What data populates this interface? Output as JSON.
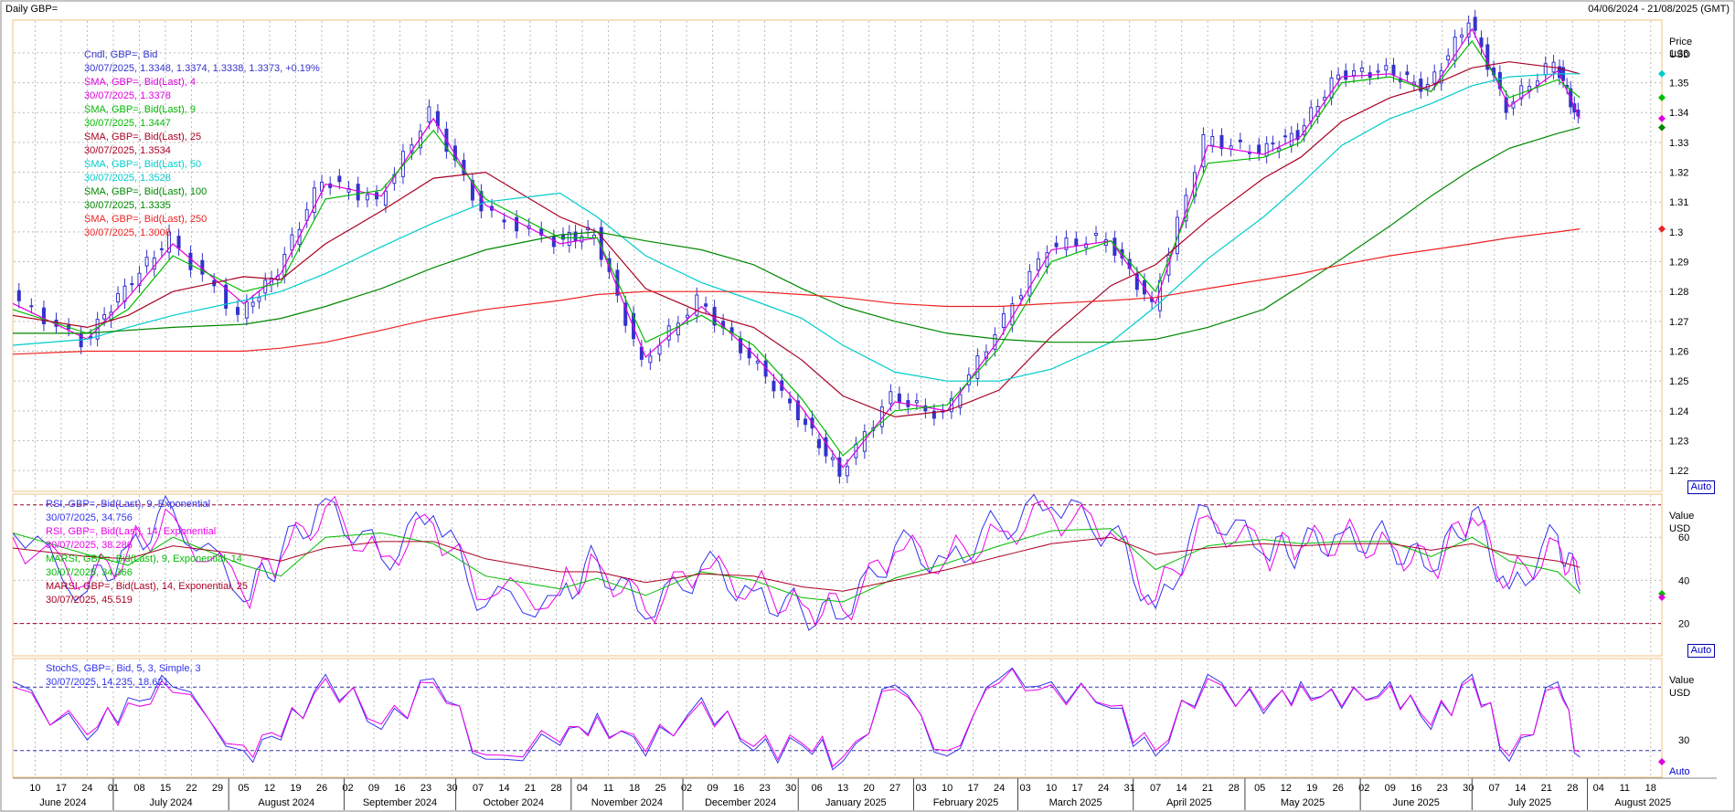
{
  "header": {
    "title": "Daily GBP=",
    "range": "04/06/2024 - 21/08/2025 (GMT)"
  },
  "colors": {
    "candle": "#3333cc",
    "sma4": "#dd00dd",
    "sma9": "#00bb00",
    "sma25": "#aa0022",
    "sma50": "#00cccc",
    "sma100": "#008800",
    "sma250": "#ee2222",
    "rsi9": "#3333ee",
    "rsi14": "#ee00ee",
    "marsi9": "#00bb00",
    "marsi14": "#aa0022",
    "stoch_k": "#3333ee",
    "stoch_d": "#ee00ee",
    "grid": "#bbbbbb",
    "frame": "#f0c080",
    "ref_line": "#990033"
  },
  "price_panel": {
    "axis_title": "Price",
    "axis_unit": "USD",
    "auto_label": "Auto",
    "legend": [
      {
        "name": "Cndl, GBP=, Bid",
        "value": "30/07/2025, 1.3348, 1.3374, 1.3338, 1.3373, +0.19%",
        "name_color": "#3333cc",
        "value_color": "#3333cc",
        "change": "+0.19%"
      },
      {
        "name": "SMA, GBP=, Bid(Last), 4",
        "value": "30/07/2025, 1.3378",
        "name_color": "#dd00dd",
        "value_color": "#dd00dd"
      },
      {
        "name": "SMA, GBP=, Bid(Last), 9",
        "value": "30/07/2025, 1.3447",
        "name_color": "#00bb00",
        "value_color": "#00bb00"
      },
      {
        "name": "SMA, GBP=, Bid(Last), 25",
        "value": "30/07/2025, 1.3534",
        "name_color": "#aa0022",
        "value_color": "#aa0022"
      },
      {
        "name": "SMA, GBP=, Bid(Last), 50",
        "value": "30/07/2025, 1.3528",
        "name_color": "#00cccc",
        "value_color": "#00cccc"
      },
      {
        "name": "SMA, GBP=, Bid(Last), 100",
        "value": "30/07/2025, 1.3335",
        "name_color": "#008800",
        "value_color": "#008800"
      },
      {
        "name": "SMA, GBP=, Bid(Last), 250",
        "value": "30/07/2025, 1.3008",
        "name_color": "#ee2222",
        "value_color": "#ee2222"
      }
    ],
    "y_ticks": [
      "1.22",
      "1.23",
      "1.24",
      "1.25",
      "1.26",
      "1.27",
      "1.28",
      "1.29",
      "1.3",
      "1.31",
      "1.32",
      "1.33",
      "1.34",
      "1.35",
      "1.36"
    ]
  },
  "rsi_panel": {
    "axis_title": "Value",
    "axis_unit": "USD",
    "auto_label": "Auto",
    "legend": [
      {
        "name": "RSI, GBP=, Bid(Last), 9, Exponential",
        "value": "30/07/2025, 34.756",
        "color": "#3333ee"
      },
      {
        "name": "RSI, GBP=, Bid(Last), 14, Exponential",
        "value": "30/07/2025, 38.286",
        "color": "#ee00ee"
      },
      {
        "name": "MARSI, GBP=, Bid(Last), 9, Exponential, 14",
        "value": "30/07/2025, 34.366",
        "color": "#00bb00"
      },
      {
        "name": "MARSI, GBP=, Bid(Last), 14, Exponential, 25",
        "value": "30/07/2025, 45.519",
        "color": "#aa0022"
      }
    ],
    "y_ticks": [
      "20",
      "40",
      "60"
    ]
  },
  "stoch_panel": {
    "axis_title": "Value",
    "axis_unit": "USD",
    "legend": [
      {
        "name": "StochS, GBP=, Bid,  5, 3, Simple, 3",
        "value": "30/07/2025, 14.235, 18.621",
        "color": "#3333ee"
      }
    ],
    "y_ticks": [
      "30"
    ]
  },
  "x_axis": {
    "day_labels": [
      "10",
      "17",
      "24",
      "01",
      "08",
      "15",
      "22",
      "29",
      "05",
      "12",
      "19",
      "26",
      "02",
      "09",
      "16",
      "23",
      "30",
      "07",
      "14",
      "21",
      "28",
      "04",
      "11",
      "18",
      "25",
      "02",
      "09",
      "16",
      "23",
      "30",
      "06",
      "13",
      "20",
      "27",
      "03",
      "10",
      "17",
      "24",
      "03",
      "10",
      "17",
      "24",
      "31",
      "07",
      "14",
      "21",
      "28",
      "05",
      "12",
      "19",
      "26",
      "02",
      "09",
      "16",
      "23",
      "30",
      "07",
      "14",
      "21",
      "28",
      "04",
      "11",
      "18"
    ],
    "month_labels": [
      "June 2024",
      "July 2024",
      "August 2024",
      "September 2024",
      "October 2024",
      "November 2024",
      "December 2024",
      "January 2025",
      "February 2025",
      "March 2025",
      "April 2025",
      "May 2025",
      "June 2025",
      "July 2025",
      "August 2025"
    ]
  },
  "chart_data": [
    {
      "type": "line",
      "subtype": "candlestick",
      "title": "Daily GBP=",
      "ylabel": "Price USD",
      "ylim": [
        1.213,
        1.371
      ],
      "x_range": [
        "2024-06-04",
        "2025-08-21"
      ],
      "grid": true,
      "legend_position": "top-left",
      "x": [
        "2024-06-04",
        "2024-06-24",
        "2024-07-05",
        "2024-07-17",
        "2024-08-05",
        "2024-08-15",
        "2024-08-27",
        "2024-09-11",
        "2024-09-25",
        "2024-10-09",
        "2024-10-29",
        "2024-11-08",
        "2024-11-21",
        "2024-12-06",
        "2024-12-20",
        "2025-01-02",
        "2025-01-13",
        "2025-01-27",
        "2025-02-10",
        "2025-02-24",
        "2025-03-10",
        "2025-03-26",
        "2025-04-07",
        "2025-04-21",
        "2025-05-06",
        "2025-05-16",
        "2025-05-27",
        "2025-06-09",
        "2025-06-20",
        "2025-07-01",
        "2025-07-11",
        "2025-07-24",
        "2025-07-30"
      ],
      "series": [
        {
          "name": "Cndl, GBP=, Bid",
          "values": [
            1.279,
            1.263,
            1.281,
            1.298,
            1.272,
            1.287,
            1.318,
            1.31,
            1.34,
            1.307,
            1.297,
            1.3,
            1.256,
            1.277,
            1.258,
            1.239,
            1.219,
            1.245,
            1.238,
            1.266,
            1.295,
            1.298,
            1.275,
            1.331,
            1.327,
            1.333,
            1.353,
            1.354,
            1.348,
            1.371,
            1.342,
            1.357,
            1.337
          ]
        },
        {
          "name": "SMA, GBP=, Bid(Last), 4",
          "values": [
            1.276,
            1.264,
            1.278,
            1.296,
            1.276,
            1.286,
            1.316,
            1.312,
            1.338,
            1.309,
            1.296,
            1.298,
            1.258,
            1.275,
            1.259,
            1.241,
            1.221,
            1.243,
            1.24,
            1.264,
            1.294,
            1.297,
            1.276,
            1.329,
            1.326,
            1.332,
            1.352,
            1.353,
            1.347,
            1.368,
            1.342,
            1.354,
            1.338
          ]
        },
        {
          "name": "SMA, GBP=, Bid(Last), 9",
          "values": [
            1.274,
            1.266,
            1.274,
            1.292,
            1.28,
            1.283,
            1.311,
            1.314,
            1.334,
            1.311,
            1.298,
            1.298,
            1.263,
            1.272,
            1.262,
            1.244,
            1.225,
            1.24,
            1.242,
            1.261,
            1.29,
            1.297,
            1.28,
            1.323,
            1.325,
            1.33,
            1.35,
            1.352,
            1.347,
            1.364,
            1.345,
            1.351,
            1.345
          ]
        },
        {
          "name": "SMA, GBP=, Bid(Last), 25",
          "values": [
            1.272,
            1.268,
            1.272,
            1.28,
            1.285,
            1.284,
            1.296,
            1.307,
            1.318,
            1.32,
            1.305,
            1.3,
            1.281,
            1.273,
            1.268,
            1.257,
            1.245,
            1.238,
            1.24,
            1.247,
            1.265,
            1.282,
            1.289,
            1.304,
            1.318,
            1.325,
            1.337,
            1.345,
            1.349,
            1.355,
            1.357,
            1.355,
            1.353
          ]
        },
        {
          "name": "SMA, GBP=, Bid(Last), 50",
          "values": [
            1.262,
            1.264,
            1.268,
            1.272,
            1.277,
            1.28,
            1.286,
            1.295,
            1.303,
            1.31,
            1.313,
            1.305,
            1.292,
            1.283,
            1.277,
            1.271,
            1.262,
            1.253,
            1.25,
            1.25,
            1.254,
            1.263,
            1.275,
            1.291,
            1.305,
            1.316,
            1.329,
            1.338,
            1.343,
            1.349,
            1.352,
            1.353,
            1.353
          ]
        },
        {
          "name": "SMA, GBP=, Bid(Last), 100",
          "values": [
            1.266,
            1.266,
            1.267,
            1.268,
            1.269,
            1.271,
            1.275,
            1.281,
            1.288,
            1.294,
            1.299,
            1.3,
            1.297,
            1.294,
            1.289,
            1.281,
            1.275,
            1.27,
            1.266,
            1.264,
            1.263,
            1.263,
            1.264,
            1.268,
            1.274,
            1.282,
            1.291,
            1.302,
            1.312,
            1.321,
            1.328,
            1.333,
            1.335
          ]
        },
        {
          "name": "SMA, GBP=, Bid(Last), 250",
          "values": [
            1.259,
            1.26,
            1.26,
            1.26,
            1.26,
            1.261,
            1.263,
            1.267,
            1.271,
            1.274,
            1.277,
            1.279,
            1.28,
            1.28,
            1.28,
            1.279,
            1.278,
            1.276,
            1.275,
            1.275,
            1.276,
            1.277,
            1.278,
            1.281,
            1.284,
            1.286,
            1.289,
            1.292,
            1.294,
            1.296,
            1.298,
            1.3,
            1.301
          ]
        }
      ]
    },
    {
      "type": "line",
      "title": "RSI",
      "ylim": [
        5,
        80
      ],
      "reference_lines": [
        20,
        75
      ],
      "series": [
        {
          "name": "RSI, GBP=, Bid(Last), 9, Exponential",
          "values": [
            62,
            35,
            56,
            73,
            30,
            52,
            78,
            50,
            70,
            28,
            33,
            50,
            22,
            47,
            35,
            26,
            22,
            56,
            50,
            66,
            74,
            63,
            27,
            74,
            52,
            55,
            62,
            58,
            44,
            72,
            36,
            61,
            35
          ]
        },
        {
          "name": "RSI, GBP=, Bid(Last), 14, Exponential",
          "values": [
            60,
            38,
            54,
            70,
            33,
            50,
            74,
            51,
            66,
            31,
            35,
            49,
            26,
            45,
            37,
            29,
            26,
            53,
            50,
            63,
            71,
            62,
            31,
            70,
            53,
            55,
            60,
            57,
            46,
            69,
            39,
            58,
            38
          ]
        },
        {
          "name": "MARSI, GBP=, Bid(Last), 9, Exponential, 14",
          "values": [
            62,
            52,
            47,
            60,
            47,
            42,
            60,
            62,
            57,
            42,
            36,
            41,
            33,
            44,
            40,
            32,
            30,
            41,
            48,
            56,
            63,
            64,
            45,
            56,
            59,
            57,
            58,
            58,
            51,
            60,
            49,
            44,
            34
          ]
        },
        {
          "name": "MARSI, GBP=, Bid(Last), 14, Exponential, 25",
          "values": [
            55,
            51,
            50,
            56,
            52,
            49,
            55,
            58,
            58,
            50,
            44,
            44,
            39,
            43,
            42,
            37,
            35,
            40,
            45,
            51,
            57,
            60,
            52,
            55,
            57,
            56,
            57,
            57,
            54,
            57,
            52,
            49,
            46
          ]
        }
      ]
    },
    {
      "type": "line",
      "title": "StochS",
      "ylim": [
        0,
        100
      ],
      "reference_lines": [
        20,
        80
      ],
      "series": [
        {
          "name": "StochS %K",
          "values": [
            85,
            30,
            70,
            80,
            20,
            30,
            92,
            40,
            88,
            12,
            25,
            55,
            15,
            70,
            20,
            25,
            10,
            82,
            15,
            88,
            85,
            60,
            15,
            92,
            55,
            85,
            60,
            85,
            40,
            92,
            10,
            85,
            14
          ]
        },
        {
          "name": "StochS %D",
          "values": [
            80,
            35,
            65,
            75,
            25,
            33,
            88,
            45,
            84,
            16,
            28,
            52,
            19,
            66,
            24,
            27,
            14,
            78,
            20,
            84,
            82,
            62,
            20,
            88,
            58,
            82,
            62,
            82,
            44,
            88,
            15,
            80,
            19
          ]
        }
      ]
    }
  ]
}
